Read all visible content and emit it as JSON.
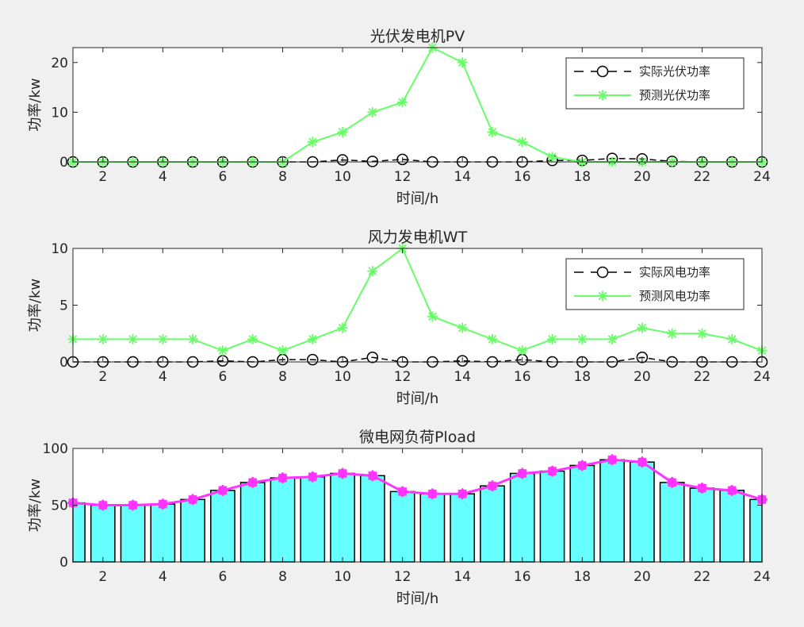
{
  "figure": {
    "background": "#f0f0f0"
  },
  "chart_data": [
    {
      "type": "line",
      "title": "光伏发电机PV",
      "xlabel": "时间/h",
      "ylabel": "功率/kw",
      "xlim": [
        1,
        24
      ],
      "ylim": [
        0,
        23
      ],
      "xticks": [
        2,
        4,
        6,
        8,
        10,
        12,
        14,
        16,
        18,
        20,
        22,
        24
      ],
      "yticks": [
        0,
        10,
        20
      ],
      "x": [
        1,
        2,
        3,
        4,
        5,
        6,
        7,
        8,
        9,
        10,
        11,
        12,
        13,
        14,
        15,
        16,
        17,
        18,
        19,
        20,
        21,
        22,
        23,
        24
      ],
      "series": [
        {
          "name": "实际光伏功率",
          "color": "#000000",
          "line": "dash",
          "marker": "circle",
          "values": [
            0,
            0,
            0,
            0,
            0,
            0,
            0,
            0,
            0,
            0.4,
            0.1,
            0.5,
            0,
            0,
            0,
            0,
            0.3,
            0.3,
            0.7,
            0.6,
            0.1,
            0,
            0,
            0
          ]
        },
        {
          "name": "预测光伏功率",
          "color": "#66ff66",
          "line": "solid",
          "marker": "star",
          "values": [
            0,
            0,
            0,
            0,
            0,
            0,
            0,
            0,
            4,
            6,
            10,
            12,
            23,
            20,
            6,
            4,
            1,
            0,
            0,
            0,
            0,
            0,
            0,
            0
          ]
        }
      ],
      "legend": "top-right"
    },
    {
      "type": "line",
      "title": "风力发电机WT",
      "xlabel": "时间/h",
      "ylabel": "功率/kw",
      "xlim": [
        1,
        24
      ],
      "ylim": [
        0,
        10
      ],
      "xticks": [
        2,
        4,
        6,
        8,
        10,
        12,
        14,
        16,
        18,
        20,
        22,
        24
      ],
      "yticks": [
        0,
        5,
        10
      ],
      "x": [
        1,
        2,
        3,
        4,
        5,
        6,
        7,
        8,
        9,
        10,
        11,
        12,
        13,
        14,
        15,
        16,
        17,
        18,
        19,
        20,
        21,
        22,
        23,
        24
      ],
      "series": [
        {
          "name": "实际风电功率",
          "color": "#000000",
          "line": "dash",
          "marker": "circle",
          "values": [
            0,
            0,
            0,
            0,
            0,
            0.1,
            0,
            0.2,
            0.2,
            0,
            0.4,
            0,
            0,
            0.1,
            0,
            0.2,
            0,
            0,
            0,
            0.4,
            0,
            0,
            0,
            0
          ]
        },
        {
          "name": "预测风电功率",
          "color": "#66ff66",
          "line": "solid",
          "marker": "star",
          "values": [
            2,
            2,
            2,
            2,
            2,
            1,
            2,
            1,
            2,
            3,
            8,
            10,
            4,
            3,
            2,
            1,
            2,
            2,
            2,
            3,
            2.5,
            2.5,
            2,
            1
          ]
        }
      ],
      "legend": "top-right"
    },
    {
      "type": "bar",
      "title": "微电网负荷Pload",
      "xlabel": "时间/h",
      "ylabel": "功率/kw",
      "xlim": [
        1,
        24
      ],
      "ylim": [
        0,
        100
      ],
      "xticks": [
        2,
        4,
        6,
        8,
        10,
        12,
        14,
        16,
        18,
        20,
        22,
        24
      ],
      "yticks": [
        0,
        50,
        100
      ],
      "x": [
        1,
        2,
        3,
        4,
        5,
        6,
        7,
        8,
        9,
        10,
        11,
        12,
        13,
        14,
        15,
        16,
        17,
        18,
        19,
        20,
        21,
        22,
        23,
        24
      ],
      "bar_color": "#66ffff",
      "line_color": "#ff33ff",
      "values": [
        52,
        50,
        50,
        51,
        55,
        63,
        70,
        74,
        75,
        78,
        76,
        62,
        60,
        60,
        67,
        78,
        80,
        85,
        90,
        88,
        70,
        65,
        63,
        55
      ]
    }
  ]
}
